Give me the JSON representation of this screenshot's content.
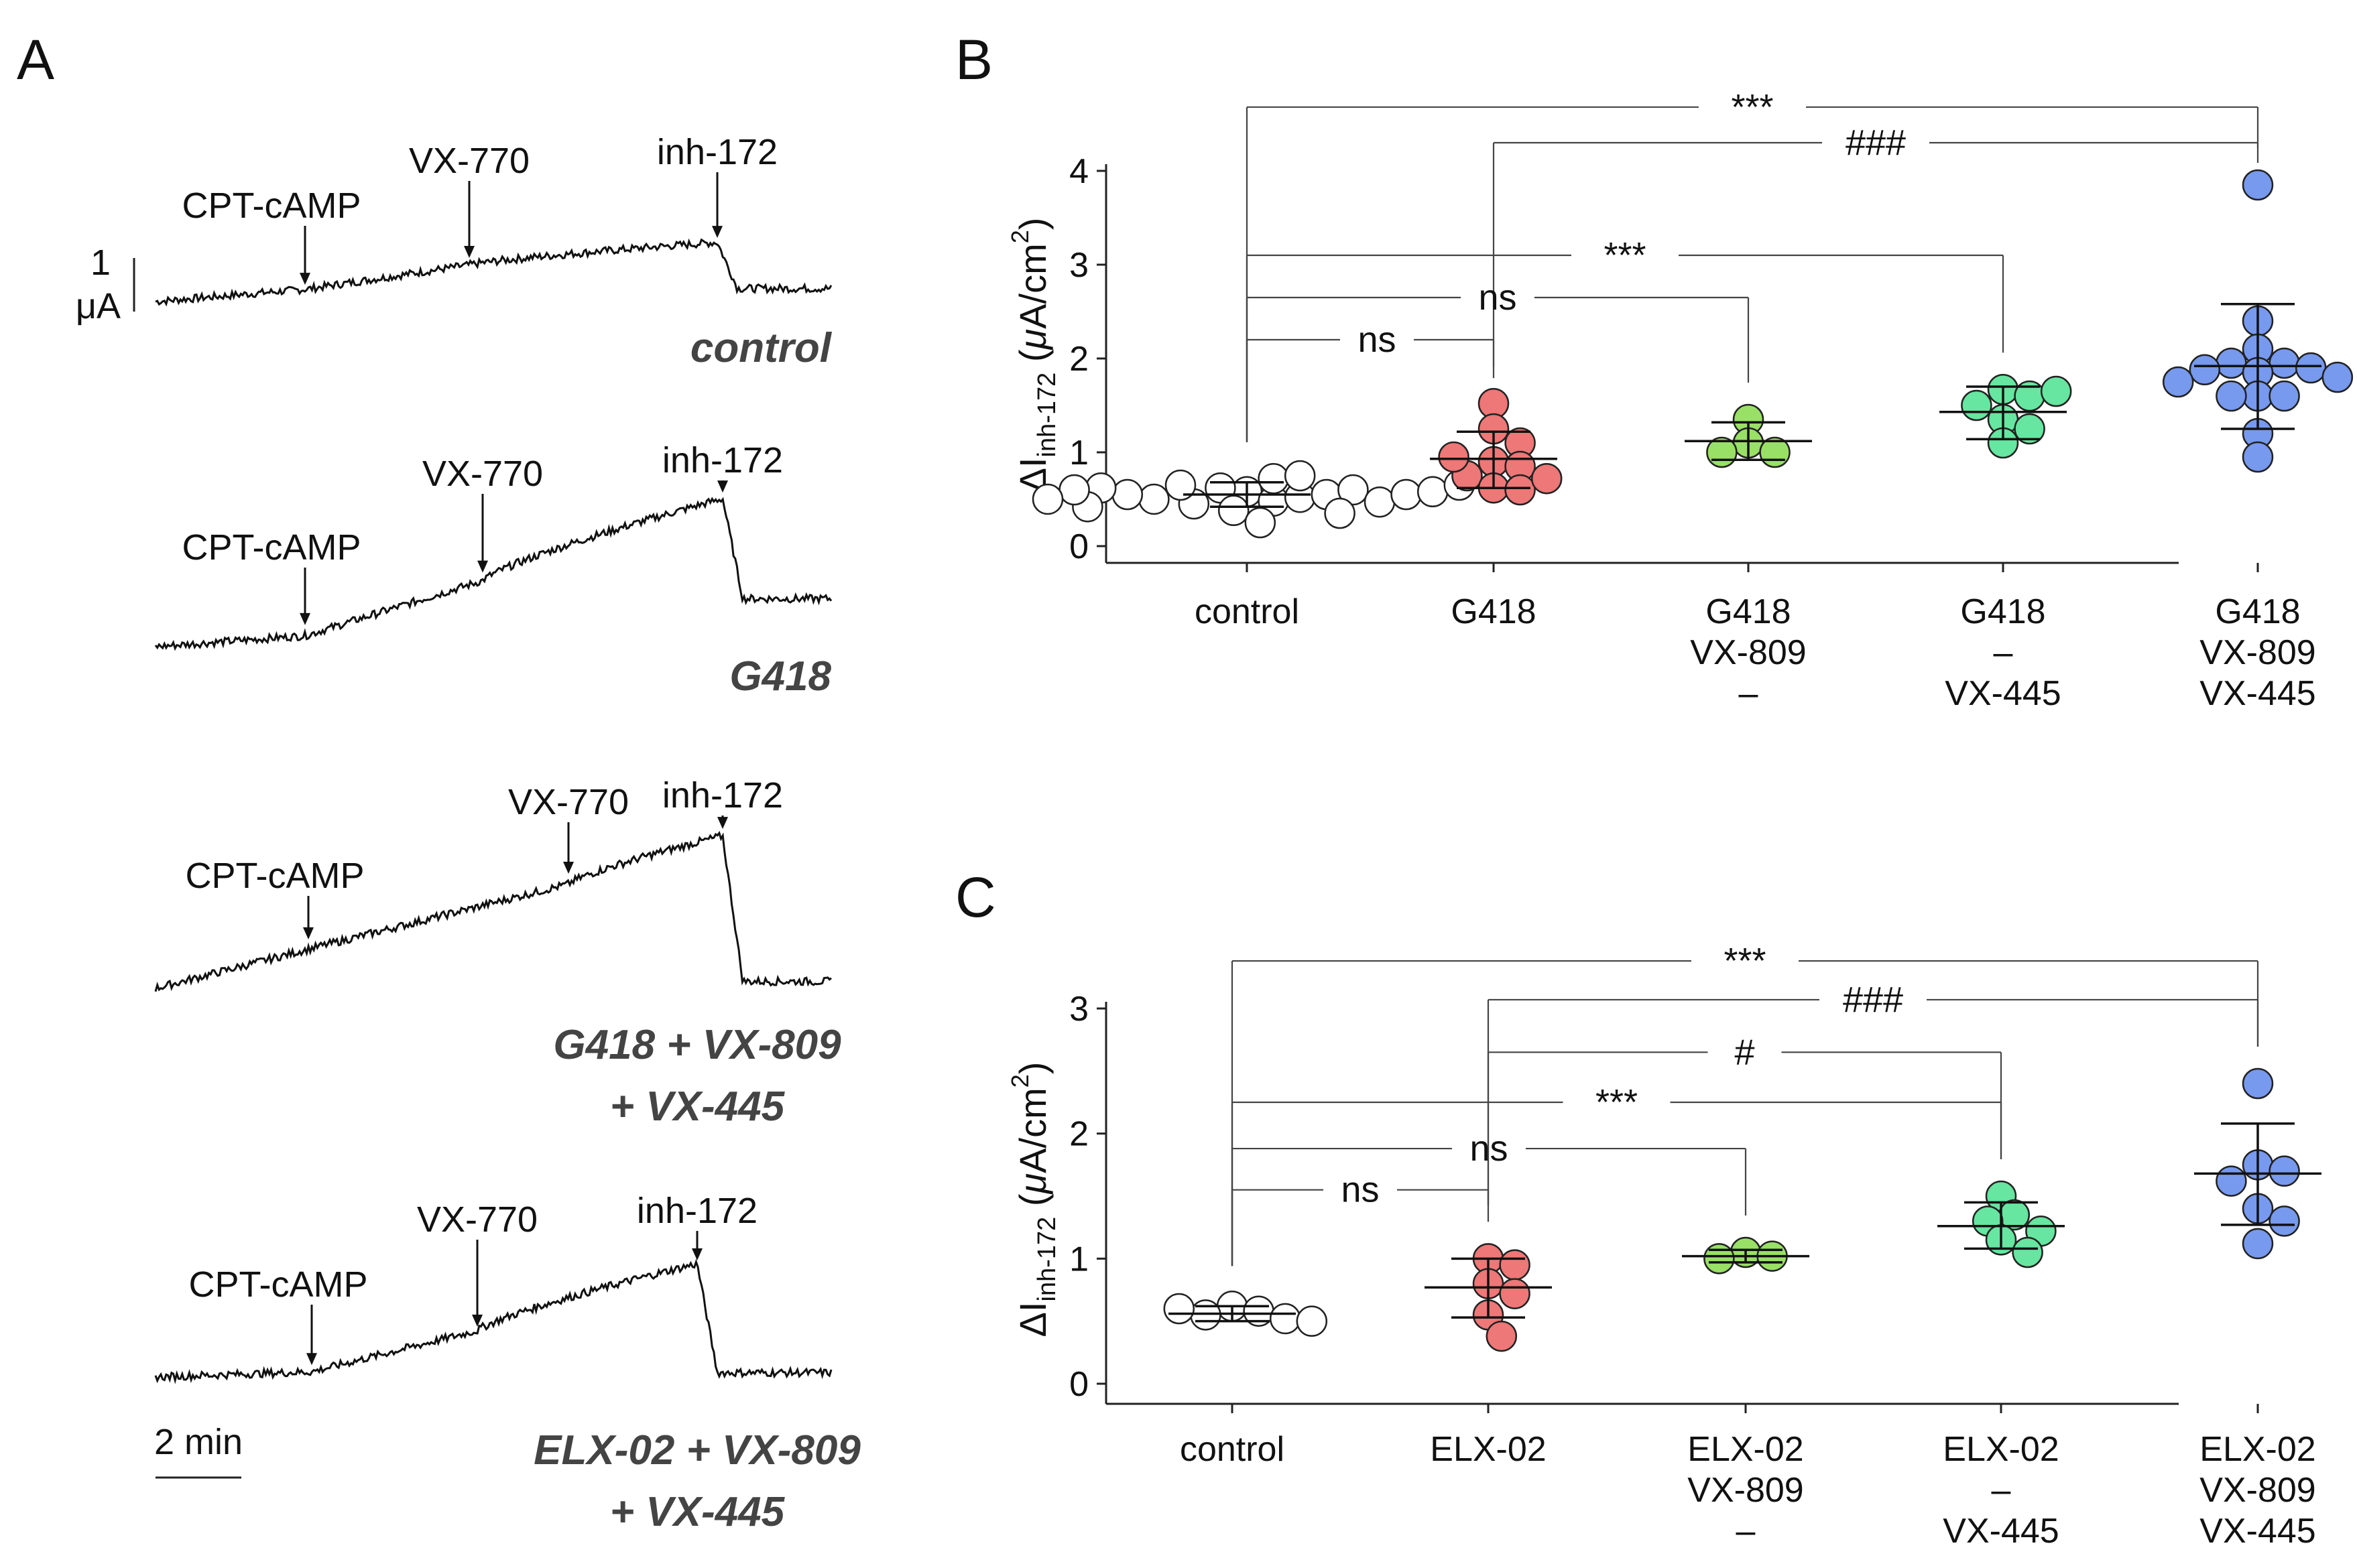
{
  "panels": {
    "A": "A",
    "B": "B",
    "C": "C"
  },
  "panel_a": {
    "scale_bar": {
      "current_value": "1",
      "current_unit": "μA",
      "time": "2 min"
    },
    "traces": [
      {
        "label": "control",
        "arrows": {
          "cpt": "CPT-cAMP",
          "vx770": "VX-770",
          "inh": "inh-172"
        },
        "baseline": 0.0,
        "after_cpt": 0.28,
        "peak": 0.68,
        "after_inh": 0.15
      },
      {
        "label": "G418",
        "arrows": {
          "cpt": "CPT-cAMP",
          "vx770": "VX-770",
          "inh": "inh-172"
        },
        "baseline": 0.0,
        "after_cpt": 0.25,
        "peak": 1.7,
        "after_inh": 0.55
      },
      {
        "label_line1": "G418 + VX-809",
        "label_line2": "+ VX-445",
        "arrows": {
          "cpt": "CPT-cAMP",
          "vx770": "VX-770",
          "inh": "inh-172"
        },
        "baseline": 0.0,
        "after_cpt": 0.9,
        "peak": 1.75,
        "after_inh": 0.08
      },
      {
        "label_line1": "ELX-02 + VX-809",
        "label_line2": "+ VX-445",
        "arrows": {
          "cpt": "CPT-cAMP",
          "vx770": "VX-770",
          "inh": "inh-172"
        },
        "baseline": 0.0,
        "after_cpt": 0.12,
        "peak": 1.3,
        "after_inh": 0.05
      }
    ]
  },
  "chart_data": [
    {
      "panel": "B",
      "type": "scatter",
      "ylabel_main": "ΔI",
      "ylabel_sub": "inh-172",
      "ylabel_unit_a": " (",
      "ylabel_unit_mu": "μ",
      "ylabel_unit_b": "A/cm",
      "ylabel_sup": "2",
      "ylabel_close": ")",
      "ylim": [
        0,
        4
      ],
      "yticks": [
        "0",
        "1",
        "2",
        "3",
        "4"
      ],
      "groups": [
        {
          "lines": [
            "control"
          ],
          "color": "#ffffff",
          "mean": 0.55,
          "sd_low": 0.42,
          "sd_high": 0.68,
          "values": [
            0.58,
            0.48,
            0.62,
            0.52,
            0.45,
            0.65,
            0.55,
            0.5,
            0.72,
            0.38,
            0.6,
            0.55,
            0.47,
            0.35,
            0.62,
            0.55,
            0.42,
            0.58,
            0.75,
            0.6,
            0.25,
            0.5,
            0.65
          ]
        },
        {
          "lines": [
            "G418"
          ],
          "color": "#ee7777",
          "mean": 0.93,
          "sd_low": 0.62,
          "sd_high": 1.22,
          "values": [
            1.52,
            1.25,
            1.1,
            0.9,
            0.85,
            0.75,
            0.62,
            0.6,
            0.72,
            0.95
          ]
        },
        {
          "lines": [
            "G418",
            "VX-809",
            "–"
          ],
          "color": "#99e066",
          "mean": 1.12,
          "sd_low": 0.92,
          "sd_high": 1.32,
          "values": [
            1.35,
            1.1,
            1.0,
            1.0
          ]
        },
        {
          "lines": [
            "G418",
            "–",
            "VX-445"
          ],
          "color": "#66e6a0",
          "mean": 1.43,
          "sd_low": 1.14,
          "sd_high": 1.7,
          "values": [
            1.67,
            1.6,
            1.5,
            1.35,
            1.25,
            1.1,
            1.65
          ]
        },
        {
          "lines": [
            "G418",
            "VX-809",
            "VX-445"
          ],
          "color": "#7799ee",
          "mean": 1.92,
          "sd_low": 1.25,
          "sd_high": 2.58,
          "values": [
            3.85,
            2.4,
            2.1,
            1.95,
            1.95,
            1.9,
            1.85,
            1.88,
            1.8,
            1.75,
            1.6,
            1.6,
            1.6,
            1.2,
            0.95
          ]
        }
      ],
      "comparisons": [
        {
          "from": 0,
          "to": 4,
          "label": "***",
          "level": 4.68
        },
        {
          "from": 1,
          "to": 4,
          "label": "###",
          "level": 4.3
        },
        {
          "from": 0,
          "to": 3,
          "label": "***",
          "level": 3.1
        },
        {
          "from": 0,
          "to": 2,
          "label": "ns",
          "level": 2.65
        },
        {
          "from": 0,
          "to": 1,
          "label": "ns",
          "level": 2.2
        }
      ]
    },
    {
      "panel": "C",
      "type": "scatter",
      "ylabel_main": "ΔI",
      "ylabel_sub": "inh-172",
      "ylabel_unit_a": " (",
      "ylabel_unit_mu": "μ",
      "ylabel_unit_b": "A/cm",
      "ylabel_sup": "2",
      "ylabel_close": ")",
      "ylim": [
        0,
        3
      ],
      "yticks": [
        "0",
        "1",
        "2",
        "3"
      ],
      "groups": [
        {
          "lines": [
            "control"
          ],
          "color": "#ffffff",
          "mean": 0.56,
          "sd_low": 0.5,
          "sd_high": 0.62,
          "values": [
            0.62,
            0.58,
            0.55,
            0.52,
            0.6,
            0.5
          ]
        },
        {
          "lines": [
            "ELX-02"
          ],
          "color": "#ee7777",
          "mean": 0.77,
          "sd_low": 0.53,
          "sd_high": 1.0,
          "values": [
            1.0,
            0.95,
            0.8,
            0.72,
            0.55,
            0.38
          ]
        },
        {
          "lines": [
            "ELX-02",
            "VX-809",
            "–"
          ],
          "color": "#99e066",
          "mean": 1.02,
          "sd_low": 0.97,
          "sd_high": 1.07,
          "values": [
            1.05,
            1.02,
            1.0
          ]
        },
        {
          "lines": [
            "ELX-02",
            "–",
            "VX-445"
          ],
          "color": "#66e6a0",
          "mean": 1.26,
          "sd_low": 1.08,
          "sd_high": 1.45,
          "values": [
            1.5,
            1.35,
            1.3,
            1.22,
            1.15,
            1.05
          ]
        },
        {
          "lines": [
            "ELX-02",
            "VX-809",
            "VX-445"
          ],
          "color": "#7799ee",
          "mean": 1.68,
          "sd_low": 1.27,
          "sd_high": 2.08,
          "values": [
            2.4,
            1.75,
            1.7,
            1.62,
            1.4,
            1.3,
            1.12
          ]
        }
      ],
      "comparisons": [
        {
          "from": 0,
          "to": 4,
          "label": "***",
          "level": 3.38
        },
        {
          "from": 1,
          "to": 4,
          "label": "###",
          "level": 3.07
        },
        {
          "from": 1,
          "to": 3,
          "label": "#",
          "level": 2.65
        },
        {
          "from": 0,
          "to": 3,
          "label": "***",
          "level": 2.25
        },
        {
          "from": 0,
          "to": 2,
          "label": "ns",
          "level": 1.88
        },
        {
          "from": 0,
          "to": 1,
          "label": "ns",
          "level": 1.55
        }
      ]
    }
  ]
}
